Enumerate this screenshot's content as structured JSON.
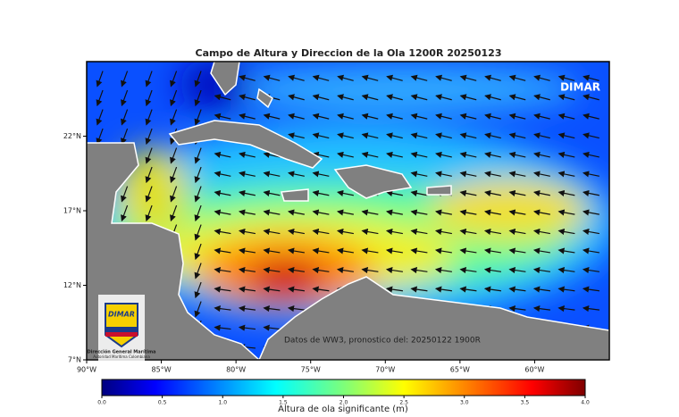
{
  "map": {
    "title": "Campo de Altura y Direccion de la Ola 1200R 20250123",
    "watermark": "DIMAR",
    "source_note": "Datos de WW3, pronostico del: 20250122 1900R",
    "logo": {
      "name": "DIMAR",
      "line1": "Dirección General Marítima",
      "line2": "Autoridad Marítima Colombiana"
    },
    "xlim": [
      -90,
      -55
    ],
    "ylim": [
      7,
      27
    ],
    "lon_ticks": [
      {
        "value": -90,
        "label": "90°W"
      },
      {
        "value": -85,
        "label": "85°W"
      },
      {
        "value": -80,
        "label": "80°W"
      },
      {
        "value": -75,
        "label": "75°W"
      },
      {
        "value": -70,
        "label": "70°W"
      },
      {
        "value": -65,
        "label": "65°W"
      },
      {
        "value": -60,
        "label": "60°W"
      }
    ],
    "lat_ticks": [
      {
        "value": 7,
        "label": "7°N"
      },
      {
        "value": 12,
        "label": "12°N"
      },
      {
        "value": 17,
        "label": "17°N"
      },
      {
        "value": 22,
        "label": "22°N"
      }
    ],
    "colorbar": {
      "label": "Altura de ola significante (m)",
      "lim": [
        0,
        4
      ],
      "ticks": [
        {
          "value": 0,
          "label": "0.0"
        },
        {
          "value": 0.5,
          "label": "0.5"
        },
        {
          "value": 1,
          "label": "1.0"
        },
        {
          "value": 1.5,
          "label": "1.5"
        },
        {
          "value": 2,
          "label": "2.0"
        },
        {
          "value": 2.5,
          "label": "2.5"
        },
        {
          "value": 3,
          "label": "3.0"
        },
        {
          "value": 3.5,
          "label": "3.5"
        },
        {
          "value": 4,
          "label": "4.0"
        }
      ]
    }
  }
}
